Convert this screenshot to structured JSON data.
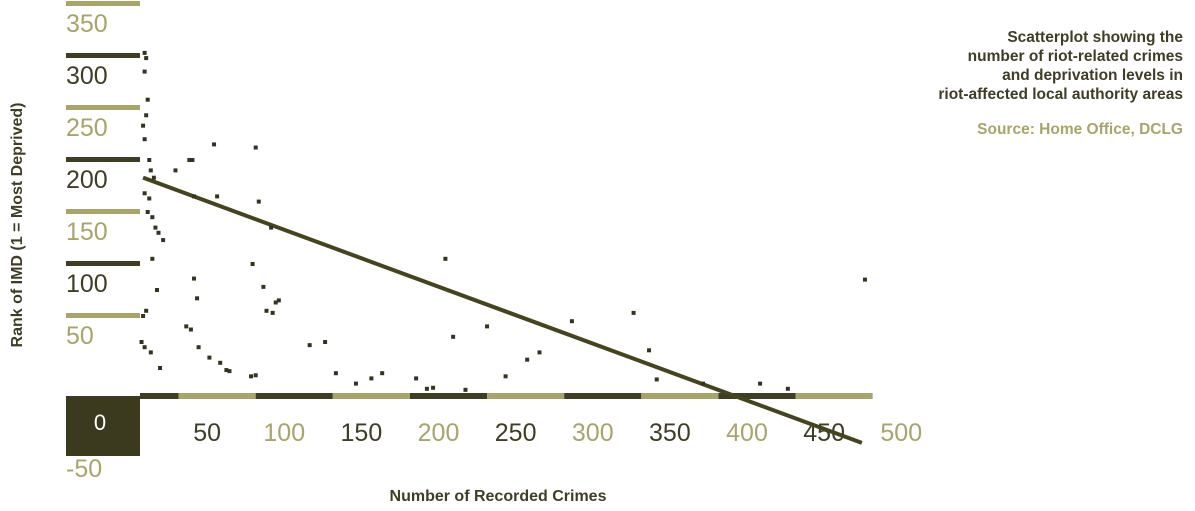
{
  "chart_data": {
    "type": "scatter",
    "xlabel": "Number of Recorded Crimes",
    "ylabel": "Rank of IMD (1 = Most Deprived)",
    "xlim": [
      0,
      500
    ],
    "ylim": [
      -50,
      375
    ],
    "x_ticks": [
      0,
      50,
      100,
      150,
      200,
      250,
      300,
      350,
      400,
      450,
      500
    ],
    "y_ticks": [
      -50,
      0,
      50,
      100,
      150,
      200,
      250,
      300,
      350
    ],
    "grid": false,
    "legend": "none",
    "colors": {
      "dark": "#3f3e24",
      "light": "#a8a46a",
      "zero_block": "#3b3a1f"
    },
    "points": [
      {
        "x": 3,
        "y": 328
      },
      {
        "x": 4,
        "y": 323
      },
      {
        "x": 3,
        "y": 310
      },
      {
        "x": 5,
        "y": 283
      },
      {
        "x": 4,
        "y": 268
      },
      {
        "x": 2,
        "y": 258
      },
      {
        "x": 3,
        "y": 245
      },
      {
        "x": 6,
        "y": 225
      },
      {
        "x": 7,
        "y": 215
      },
      {
        "x": 9,
        "y": 208
      },
      {
        "x": 3,
        "y": 193
      },
      {
        "x": 5,
        "y": 175
      },
      {
        "x": 6,
        "y": 188
      },
      {
        "x": 8,
        "y": 170
      },
      {
        "x": 10,
        "y": 160
      },
      {
        "x": 12,
        "y": 155
      },
      {
        "x": 15,
        "y": 148
      },
      {
        "x": 8,
        "y": 130
      },
      {
        "x": 11,
        "y": 100
      },
      {
        "x": 4,
        "y": 80
      },
      {
        "x": 2,
        "y": 75
      },
      {
        "x": 1,
        "y": 50
      },
      {
        "x": 3,
        "y": 45
      },
      {
        "x": 7,
        "y": 40
      },
      {
        "x": 13,
        "y": 25
      },
      {
        "x": 23,
        "y": 215
      },
      {
        "x": 32,
        "y": 225
      },
      {
        "x": 34,
        "y": 225
      },
      {
        "x": 35,
        "y": 190
      },
      {
        "x": 48,
        "y": 240
      },
      {
        "x": 50,
        "y": 190
      },
      {
        "x": 75,
        "y": 237
      },
      {
        "x": 77,
        "y": 185
      },
      {
        "x": 73,
        "y": 125
      },
      {
        "x": 85,
        "y": 160
      },
      {
        "x": 80,
        "y": 103
      },
      {
        "x": 82,
        "y": 80
      },
      {
        "x": 86,
        "y": 78
      },
      {
        "x": 90,
        "y": 90
      },
      {
        "x": 88,
        "y": 88
      },
      {
        "x": 35,
        "y": 111
      },
      {
        "x": 37,
        "y": 92
      },
      {
        "x": 30,
        "y": 65
      },
      {
        "x": 33,
        "y": 62
      },
      {
        "x": 38,
        "y": 45
      },
      {
        "x": 45,
        "y": 35
      },
      {
        "x": 52,
        "y": 30
      },
      {
        "x": 56,
        "y": 23
      },
      {
        "x": 58,
        "y": 22
      },
      {
        "x": 72,
        "y": 17
      },
      {
        "x": 75,
        "y": 18
      },
      {
        "x": 110,
        "y": 47
      },
      {
        "x": 120,
        "y": 50
      },
      {
        "x": 127,
        "y": 20
      },
      {
        "x": 140,
        "y": 10
      },
      {
        "x": 150,
        "y": 15
      },
      {
        "x": 157,
        "y": 20
      },
      {
        "x": 179,
        "y": 15
      },
      {
        "x": 186,
        "y": 5
      },
      {
        "x": 190,
        "y": 6
      },
      {
        "x": 203,
        "y": 55
      },
      {
        "x": 198,
        "y": 130
      },
      {
        "x": 211,
        "y": 4
      },
      {
        "x": 225,
        "y": 65
      },
      {
        "x": 237,
        "y": 17
      },
      {
        "x": 251,
        "y": 33
      },
      {
        "x": 259,
        "y": 40
      },
      {
        "x": 280,
        "y": 70
      },
      {
        "x": 320,
        "y": 78
      },
      {
        "x": 330,
        "y": 42
      },
      {
        "x": 335,
        "y": 14
      },
      {
        "x": 365,
        "y": 10
      },
      {
        "x": 402,
        "y": 10
      },
      {
        "x": 420,
        "y": 5
      },
      {
        "x": 470,
        "y": 110
      }
    ],
    "trend_line": [
      {
        "x": 2,
        "y": 208
      },
      {
        "x": 468,
        "y": -47
      }
    ]
  },
  "notes": {
    "description": "Scatterplot showing the\nnumber of riot-related crimes\nand deprivation levels in\nriot-affected local authority areas",
    "source": "Source: Home Office, DCLG"
  }
}
